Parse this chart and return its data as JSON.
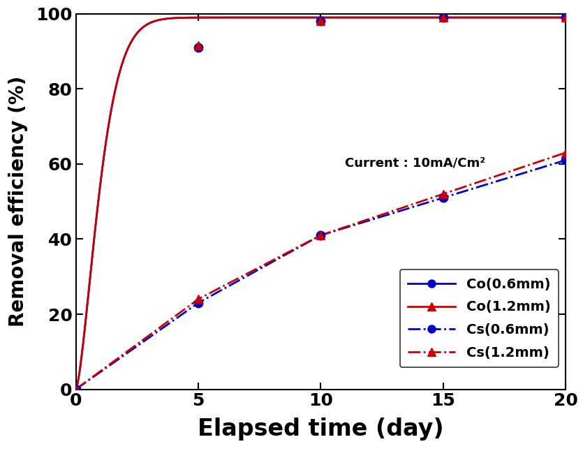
{
  "co_06_x": [
    0,
    5,
    10,
    15,
    20
  ],
  "co_06_y": [
    0,
    91,
    98,
    99,
    99
  ],
  "co_12_x": [
    0,
    5,
    10,
    15,
    20
  ],
  "co_12_y": [
    0,
    91.5,
    98,
    99,
    99
  ],
  "cs_06_x": [
    0,
    5,
    10,
    15,
    20
  ],
  "cs_06_y": [
    0,
    23,
    41,
    51,
    61
  ],
  "cs_12_x": [
    0,
    5,
    10,
    15,
    20
  ],
  "cs_12_y": [
    0,
    24,
    41,
    52,
    63
  ],
  "co_color": "#0000cc",
  "red_color": "#cc0000",
  "xlabel": "Elapsed time (day)",
  "ylabel": "Removal efficiency (%)",
  "annotation": "Current : 10mA/Cm²",
  "xlim": [
    0,
    20
  ],
  "ylim": [
    0,
    100
  ],
  "xticks": [
    0,
    5,
    10,
    15,
    20
  ],
  "yticks": [
    0,
    20,
    40,
    60,
    80,
    100
  ]
}
